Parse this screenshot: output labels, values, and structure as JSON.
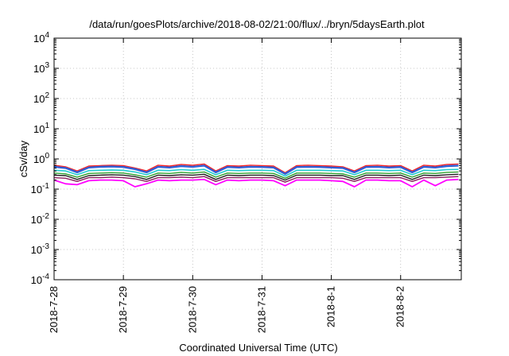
{
  "chart_data": {
    "type": "line",
    "title": "/data/run/goesPlots/archive/2018-08-02/21:00/flux/../bryn/5daysEarth.plot",
    "xlabel": "Coordinated Universal Time (UTC)",
    "ylabel": "cSv/day",
    "yscale": "log",
    "ylim": [
      0.0001,
      10000
    ],
    "xlim": [
      "2018-07-28",
      "2018-08-02T21:00"
    ],
    "grid": true,
    "legend": "none",
    "y_ticks": [
      {
        "base": "10",
        "exp": "-4",
        "value": 0.0001
      },
      {
        "base": "10",
        "exp": "-3",
        "value": 0.001
      },
      {
        "base": "10",
        "exp": "-2",
        "value": 0.01
      },
      {
        "base": "10",
        "exp": "-1",
        "value": 0.1
      },
      {
        "base": "10",
        "exp": "0",
        "value": 1
      },
      {
        "base": "10",
        "exp": "1",
        "value": 10
      },
      {
        "base": "10",
        "exp": "2",
        "value": 100
      },
      {
        "base": "10",
        "exp": "3",
        "value": 1000
      },
      {
        "base": "10",
        "exp": "4",
        "value": 10000
      }
    ],
    "x_ticks": [
      {
        "label": "2018-7-28",
        "value": "2018-07-28"
      },
      {
        "label": "2018-7-29",
        "value": "2018-07-29"
      },
      {
        "label": "2018-7-30",
        "value": "2018-07-30"
      },
      {
        "label": "2018-7-31",
        "value": "2018-07-31"
      },
      {
        "label": "2018-8-1",
        "value": "2018-08-01"
      },
      {
        "label": "2018-8-2",
        "value": "2018-08-02"
      }
    ],
    "x": [
      "2018-07-28T00:00",
      "2018-07-28T04:00",
      "2018-07-28T08:00",
      "2018-07-28T12:00",
      "2018-07-28T16:00",
      "2018-07-28T20:00",
      "2018-07-29T00:00",
      "2018-07-29T04:00",
      "2018-07-29T08:00",
      "2018-07-29T12:00",
      "2018-07-29T16:00",
      "2018-07-29T20:00",
      "2018-07-30T00:00",
      "2018-07-30T04:00",
      "2018-07-30T08:00",
      "2018-07-30T12:00",
      "2018-07-30T16:00",
      "2018-07-30T20:00",
      "2018-07-31T00:00",
      "2018-07-31T04:00",
      "2018-07-31T08:00",
      "2018-07-31T12:00",
      "2018-07-31T16:00",
      "2018-07-31T20:00",
      "2018-08-01T00:00",
      "2018-08-01T04:00",
      "2018-08-01T08:00",
      "2018-08-01T12:00",
      "2018-08-01T16:00",
      "2018-08-01T20:00",
      "2018-08-02T00:00",
      "2018-08-02T04:00",
      "2018-08-02T08:00",
      "2018-08-02T12:00",
      "2018-08-02T16:00",
      "2018-08-02T20:00"
    ],
    "series": [
      {
        "color": "#ff2020",
        "width": 1.4,
        "values": [
          0.62,
          0.55,
          0.4,
          0.58,
          0.6,
          0.62,
          0.6,
          0.5,
          0.4,
          0.62,
          0.58,
          0.66,
          0.62,
          0.68,
          0.4,
          0.6,
          0.58,
          0.62,
          0.6,
          0.58,
          0.35,
          0.6,
          0.62,
          0.6,
          0.58,
          0.55,
          0.4,
          0.6,
          0.62,
          0.58,
          0.6,
          0.4,
          0.62,
          0.58,
          0.66,
          0.68
        ]
      },
      {
        "color": "#2f5fd6",
        "width": 2.4,
        "values": [
          0.55,
          0.5,
          0.36,
          0.52,
          0.55,
          0.56,
          0.54,
          0.46,
          0.36,
          0.55,
          0.52,
          0.58,
          0.55,
          0.6,
          0.36,
          0.54,
          0.52,
          0.55,
          0.54,
          0.52,
          0.32,
          0.54,
          0.55,
          0.54,
          0.52,
          0.5,
          0.36,
          0.54,
          0.55,
          0.52,
          0.54,
          0.36,
          0.55,
          0.52,
          0.58,
          0.6
        ]
      },
      {
        "color": "#22cbd2",
        "width": 1.6,
        "values": [
          0.42,
          0.4,
          0.3,
          0.41,
          0.42,
          0.43,
          0.42,
          0.37,
          0.3,
          0.42,
          0.41,
          0.44,
          0.42,
          0.45,
          0.3,
          0.42,
          0.41,
          0.42,
          0.42,
          0.41,
          0.27,
          0.42,
          0.42,
          0.42,
          0.41,
          0.4,
          0.3,
          0.42,
          0.42,
          0.41,
          0.42,
          0.3,
          0.42,
          0.41,
          0.44,
          0.45
        ]
      },
      {
        "color": "#2fa02f",
        "width": 1.4,
        "values": [
          0.34,
          0.32,
          0.25,
          0.33,
          0.34,
          0.35,
          0.34,
          0.3,
          0.25,
          0.34,
          0.33,
          0.36,
          0.34,
          0.37,
          0.25,
          0.34,
          0.33,
          0.34,
          0.34,
          0.33,
          0.23,
          0.34,
          0.34,
          0.34,
          0.33,
          0.32,
          0.25,
          0.34,
          0.34,
          0.33,
          0.34,
          0.25,
          0.34,
          0.33,
          0.36,
          0.37
        ]
      },
      {
        "color": "#222222",
        "width": 1.4,
        "values": [
          0.29,
          0.28,
          0.21,
          0.28,
          0.29,
          0.3,
          0.29,
          0.26,
          0.21,
          0.29,
          0.28,
          0.3,
          0.29,
          0.31,
          0.21,
          0.29,
          0.28,
          0.29,
          0.29,
          0.28,
          0.2,
          0.29,
          0.29,
          0.29,
          0.28,
          0.28,
          0.21,
          0.29,
          0.29,
          0.28,
          0.29,
          0.21,
          0.29,
          0.28,
          0.3,
          0.31
        ]
      },
      {
        "color": "#8b2060",
        "width": 1.4,
        "values": [
          0.24,
          0.23,
          0.18,
          0.24,
          0.24,
          0.25,
          0.24,
          0.22,
          0.18,
          0.24,
          0.24,
          0.25,
          0.24,
          0.26,
          0.18,
          0.24,
          0.24,
          0.24,
          0.24,
          0.24,
          0.17,
          0.24,
          0.24,
          0.24,
          0.24,
          0.23,
          0.18,
          0.24,
          0.24,
          0.24,
          0.24,
          0.18,
          0.24,
          0.24,
          0.25,
          0.26
        ]
      },
      {
        "color": "#ff00ff",
        "width": 1.8,
        "values": [
          0.2,
          0.15,
          0.14,
          0.19,
          0.2,
          0.2,
          0.19,
          0.12,
          0.15,
          0.2,
          0.19,
          0.2,
          0.2,
          0.21,
          0.14,
          0.2,
          0.19,
          0.2,
          0.2,
          0.19,
          0.13,
          0.2,
          0.2,
          0.2,
          0.19,
          0.18,
          0.12,
          0.2,
          0.2,
          0.19,
          0.19,
          0.12,
          0.2,
          0.13,
          0.2,
          0.21
        ]
      }
    ]
  }
}
